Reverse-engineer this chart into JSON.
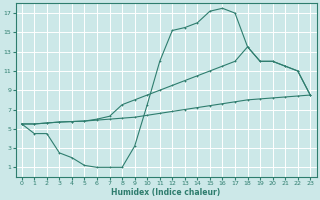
{
  "xlabel": "Humidex (Indice chaleur)",
  "bg_color": "#cce8e8",
  "grid_color": "#ffffff",
  "line_color": "#2e7d6e",
  "xlim": [
    -0.5,
    23.5
  ],
  "ylim": [
    0,
    18
  ],
  "xticks": [
    0,
    1,
    2,
    3,
    4,
    5,
    6,
    7,
    8,
    9,
    10,
    11,
    12,
    13,
    14,
    15,
    16,
    17,
    18,
    19,
    20,
    21,
    22,
    23
  ],
  "yticks": [
    1,
    3,
    5,
    7,
    9,
    11,
    13,
    15,
    17
  ],
  "curve1_x": [
    0,
    1,
    2,
    3,
    4,
    5,
    6,
    7,
    8,
    9,
    10,
    11,
    12,
    13,
    14,
    15,
    16,
    17,
    18,
    19,
    20,
    21,
    22,
    23
  ],
  "curve1_y": [
    5.5,
    4.5,
    4.5,
    2.5,
    2.0,
    1.2,
    1.0,
    1.0,
    1.0,
    3.2,
    7.5,
    12.0,
    15.2,
    15.5,
    16.0,
    17.2,
    17.5,
    17.0,
    13.5,
    12.0,
    12.0,
    11.5,
    11.0,
    8.5
  ],
  "curve2_x": [
    0,
    1,
    2,
    3,
    4,
    5,
    6,
    7,
    8,
    9,
    10,
    11,
    12,
    13,
    14,
    15,
    16,
    17,
    18,
    19,
    20,
    21,
    22,
    23
  ],
  "curve2_y": [
    5.5,
    5.5,
    5.6,
    5.7,
    5.75,
    5.8,
    5.9,
    6.0,
    6.1,
    6.2,
    6.4,
    6.6,
    6.8,
    7.0,
    7.2,
    7.4,
    7.6,
    7.8,
    8.0,
    8.1,
    8.2,
    8.3,
    8.4,
    8.5
  ],
  "curve3_x": [
    0,
    1,
    2,
    3,
    4,
    5,
    6,
    7,
    8,
    9,
    10,
    11,
    12,
    13,
    14,
    15,
    16,
    17,
    18,
    19,
    20,
    21,
    22,
    23
  ],
  "curve3_y": [
    5.5,
    5.5,
    5.6,
    5.7,
    5.75,
    5.8,
    6.0,
    6.3,
    7.5,
    8.0,
    8.5,
    9.0,
    9.5,
    10.0,
    10.5,
    11.0,
    11.5,
    12.0,
    13.5,
    12.0,
    12.0,
    11.5,
    11.0,
    8.5
  ]
}
